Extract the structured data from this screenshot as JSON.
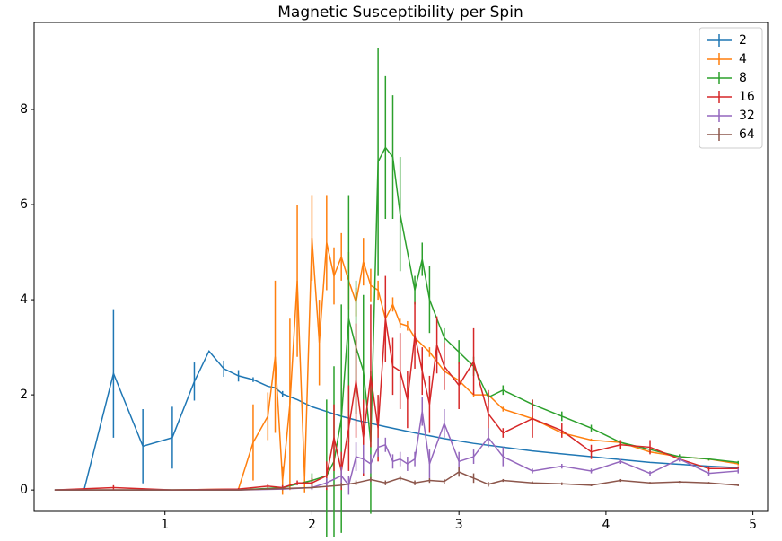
{
  "chart_data": {
    "type": "errorbar",
    "title": "Magnetic Susceptibility per Spin",
    "xlim": [
      0.11,
      5.1
    ],
    "ylim": [
      -0.45,
      9.83
    ],
    "xticks": [
      1,
      2,
      3,
      4,
      5
    ],
    "yticks": [
      0,
      2,
      4,
      6,
      8
    ],
    "grid": false,
    "legend": "upper right",
    "series": [
      {
        "name": "2",
        "color": "#1f77b4",
        "x": [
          0.25,
          0.45,
          0.65,
          0.85,
          1.05,
          1.2,
          1.3,
          1.4,
          1.5,
          1.6,
          1.7,
          1.75,
          1.8,
          1.9,
          2.0,
          2.1,
          2.2,
          2.3,
          2.4,
          2.5,
          2.7,
          2.9,
          3.1,
          3.3,
          3.5,
          3.7,
          3.9,
          4.1,
          4.3,
          4.5,
          4.7,
          4.9
        ],
        "values": [
          0,
          0,
          2.45,
          0.92,
          1.1,
          2.28,
          2.92,
          2.55,
          2.4,
          2.32,
          2.18,
          2.15,
          2.02,
          1.9,
          1.75,
          1.65,
          1.55,
          1.47,
          1.4,
          1.33,
          1.2,
          1.08,
          0.98,
          0.9,
          0.82,
          0.76,
          0.7,
          0.64,
          0.58,
          0.54,
          0.5,
          0.47
        ],
        "errors": [
          0,
          0,
          1.35,
          0.78,
          0.65,
          0.4,
          0,
          0.17,
          0.12,
          0.05,
          0,
          0,
          0.06,
          0,
          0,
          0,
          0,
          0,
          0,
          0,
          0,
          0,
          0,
          0,
          0,
          0,
          0,
          0,
          0,
          0,
          0,
          0
        ]
      },
      {
        "name": "4",
        "color": "#ff7f0e",
        "x": [
          0.25,
          0.65,
          1.05,
          1.5,
          1.6,
          1.7,
          1.75,
          1.8,
          1.85,
          1.9,
          1.95,
          2.0,
          2.05,
          2.1,
          2.15,
          2.2,
          2.25,
          2.3,
          2.35,
          2.4,
          2.45,
          2.5,
          2.55,
          2.6,
          2.65,
          2.7,
          2.8,
          2.9,
          3.0,
          3.1,
          3.2,
          3.3,
          3.5,
          3.7,
          3.9,
          4.1,
          4.3,
          4.5,
          4.7,
          4.9
        ],
        "values": [
          0,
          0,
          0,
          0.02,
          1.0,
          1.55,
          2.8,
          0.2,
          1.8,
          4.4,
          0.25,
          5.3,
          3.1,
          5.2,
          4.5,
          4.9,
          4.4,
          3.95,
          4.8,
          4.3,
          4.2,
          3.6,
          3.9,
          3.5,
          3.45,
          3.2,
          2.9,
          2.5,
          2.3,
          2.0,
          2.0,
          1.7,
          1.5,
          1.2,
          1.05,
          1.0,
          0.8,
          0.7,
          0.65,
          0.55
        ],
        "errors": [
          0,
          0,
          0,
          0,
          0.8,
          0.5,
          1.6,
          0.3,
          1.8,
          1.6,
          0.3,
          0.9,
          0.9,
          1.0,
          0.6,
          0.5,
          0.6,
          0.3,
          0.5,
          0.35,
          0.2,
          0.3,
          0.15,
          0.1,
          0.1,
          0.1,
          0.1,
          0.05,
          0.05,
          0.05,
          0.05,
          0.05,
          0.05,
          0.05,
          0.03,
          0.03,
          0.03,
          0.03,
          0.03,
          0.03
        ]
      },
      {
        "name": "8",
        "color": "#2ca02c",
        "x": [
          0.25,
          0.65,
          1.05,
          1.5,
          1.8,
          2.0,
          2.1,
          2.15,
          2.2,
          2.25,
          2.3,
          2.35,
          2.4,
          2.45,
          2.5,
          2.55,
          2.6,
          2.7,
          2.75,
          2.8,
          2.9,
          3.0,
          3.1,
          3.2,
          3.3,
          3.5,
          3.7,
          3.9,
          4.1,
          4.3,
          4.5,
          4.7,
          4.9
        ],
        "values": [
          0,
          0,
          0,
          0,
          0.05,
          0.2,
          0.3,
          0.6,
          1.5,
          3.6,
          3.0,
          2.5,
          1.0,
          6.9,
          7.2,
          7.0,
          5.8,
          4.2,
          4.85,
          4.0,
          3.2,
          2.9,
          2.6,
          1.95,
          2.1,
          1.8,
          1.55,
          1.3,
          1.0,
          0.85,
          0.7,
          0.65,
          0.58
        ],
        "errors": [
          0,
          0,
          0,
          0,
          0.05,
          0.15,
          1.6,
          2.0,
          2.4,
          2.6,
          1.4,
          1.6,
          1.5,
          2.4,
          1.5,
          1.3,
          1.2,
          0.3,
          0.35,
          0.7,
          0.2,
          0.25,
          0.2,
          0.1,
          0.1,
          0.1,
          0.1,
          0.07,
          0.05,
          0.05,
          0.05,
          0.03,
          0.03
        ]
      },
      {
        "name": "16",
        "color": "#d62728",
        "x": [
          0.25,
          0.65,
          1.05,
          1.5,
          1.7,
          1.8,
          1.9,
          2.0,
          2.1,
          2.15,
          2.2,
          2.25,
          2.3,
          2.35,
          2.4,
          2.45,
          2.5,
          2.55,
          2.6,
          2.65,
          2.7,
          2.75,
          2.8,
          2.85,
          2.9,
          3.0,
          3.1,
          3.2,
          3.3,
          3.5,
          3.7,
          3.9,
          4.1,
          4.3,
          4.5,
          4.7,
          4.9
        ],
        "values": [
          0,
          0.05,
          0,
          0.02,
          0.08,
          0.05,
          0.15,
          0.15,
          0.3,
          1.1,
          0.4,
          1.3,
          2.3,
          1.1,
          2.4,
          1.3,
          3.6,
          2.6,
          2.5,
          1.9,
          3.25,
          2.5,
          1.8,
          3.05,
          2.6,
          2.2,
          2.7,
          1.6,
          1.2,
          1.5,
          1.25,
          0.8,
          0.95,
          0.9,
          0.65,
          0.45,
          0.45
        ],
        "errors": [
          0,
          0.05,
          0,
          0.02,
          0.05,
          0.05,
          0.05,
          0.1,
          0.3,
          0.7,
          0.4,
          0.9,
          1.2,
          0.8,
          1.5,
          0.7,
          0.9,
          0.6,
          0.8,
          0.6,
          0.7,
          0.5,
          0.6,
          0.6,
          0.5,
          0.5,
          0.7,
          0.5,
          0.1,
          0.4,
          0.15,
          0.15,
          0.1,
          0.15,
          0.05,
          0.05,
          0.05
        ]
      },
      {
        "name": "32",
        "color": "#9467bd",
        "x": [
          0.25,
          0.65,
          1.05,
          1.5,
          1.8,
          2.0,
          2.1,
          2.2,
          2.25,
          2.3,
          2.35,
          2.4,
          2.45,
          2.5,
          2.55,
          2.6,
          2.65,
          2.7,
          2.75,
          2.8,
          2.9,
          3.0,
          3.1,
          3.2,
          3.3,
          3.5,
          3.7,
          3.9,
          4.1,
          4.3,
          4.5,
          4.7,
          4.9
        ],
        "values": [
          0,
          0,
          0,
          0,
          0.02,
          0.05,
          0.15,
          0.3,
          0.1,
          0.7,
          0.65,
          0.55,
          0.9,
          0.95,
          0.6,
          0.65,
          0.55,
          0.65,
          1.65,
          0.55,
          1.4,
          0.6,
          0.7,
          1.1,
          0.7,
          0.4,
          0.5,
          0.4,
          0.6,
          0.35,
          0.65,
          0.35,
          0.4
        ],
        "errors": [
          0,
          0,
          0,
          0,
          0.02,
          0.05,
          0.1,
          0.2,
          0.2,
          0.3,
          0.3,
          0.2,
          0.2,
          0.15,
          0.15,
          0.15,
          0.15,
          0.15,
          0.3,
          0.3,
          0.3,
          0.2,
          0.15,
          0.2,
          0.2,
          0.05,
          0.05,
          0.05,
          0.05,
          0.05,
          0.05,
          0.05,
          0.05
        ]
      },
      {
        "name": "64",
        "color": "#8c564b",
        "x": [
          0.25,
          0.65,
          1.05,
          1.5,
          1.8,
          2.0,
          2.2,
          2.3,
          2.4,
          2.5,
          2.6,
          2.7,
          2.8,
          2.9,
          3.0,
          3.1,
          3.2,
          3.3,
          3.5,
          3.7,
          3.9,
          4.1,
          4.3,
          4.5,
          4.7,
          4.9
        ],
        "values": [
          0,
          0,
          0,
          0,
          0.03,
          0.05,
          0.1,
          0.15,
          0.22,
          0.15,
          0.25,
          0.15,
          0.2,
          0.18,
          0.38,
          0.25,
          0.12,
          0.2,
          0.15,
          0.13,
          0.1,
          0.2,
          0.15,
          0.17,
          0.15,
          0.1
        ],
        "errors": [
          0,
          0,
          0,
          0,
          0.02,
          0.03,
          0.05,
          0.05,
          0.05,
          0.05,
          0.05,
          0.05,
          0.05,
          0.05,
          0.1,
          0.1,
          0.05,
          0.03,
          0.03,
          0.03,
          0.02,
          0.03,
          0.02,
          0.02,
          0.02,
          0.02
        ]
      }
    ]
  }
}
